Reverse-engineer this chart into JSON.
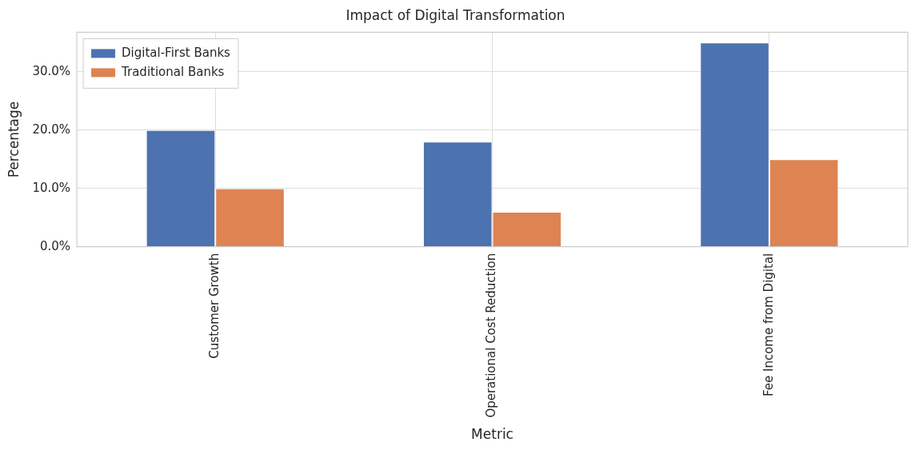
{
  "chart_data": {
    "type": "bar",
    "title": "Impact of Digital Transformation",
    "xlabel": "Metric",
    "ylabel": "Percentage",
    "categories": [
      "Customer Growth",
      "Operational Cost Reduction",
      "Fee Income from Digital"
    ],
    "series": [
      {
        "name": "Digital-First Banks",
        "color": "#4c72b0",
        "values": [
          20,
          18,
          35
        ]
      },
      {
        "name": "Traditional Banks",
        "color": "#dd8452",
        "values": [
          10,
          6,
          15
        ]
      }
    ],
    "ylim": [
      0,
      36.75
    ],
    "yticks": [
      {
        "value": 0,
        "label": "0.0%"
      },
      {
        "value": 10,
        "label": "10.0%"
      },
      {
        "value": 20,
        "label": "20.0%"
      },
      {
        "value": 30,
        "label": "30.0%"
      }
    ],
    "grid": true,
    "legend": "top left"
  }
}
